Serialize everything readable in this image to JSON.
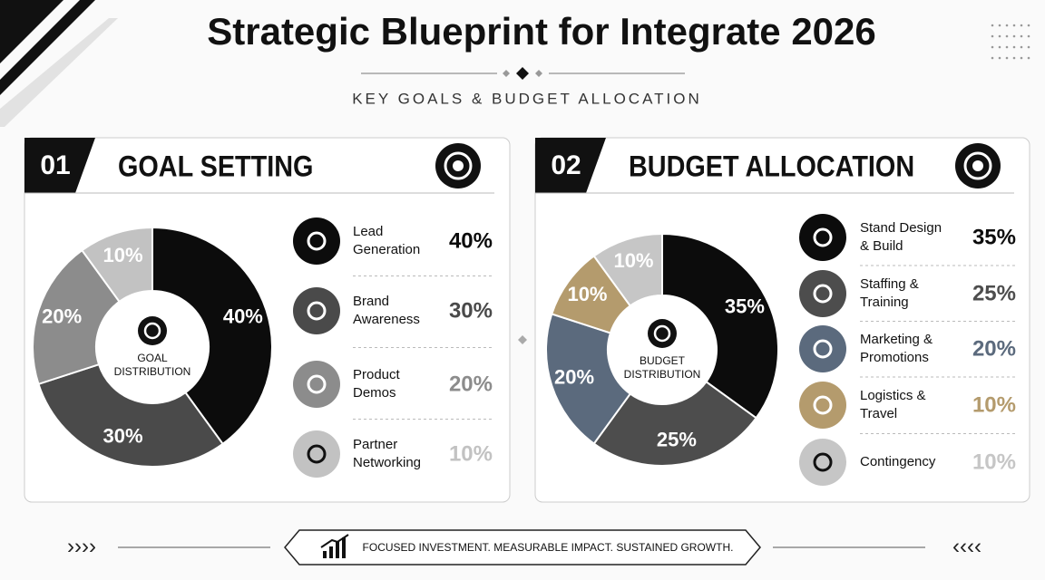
{
  "title": "Strategic Blueprint for Integrate 2026",
  "subtitle": "KEY GOALS & BUDGET ALLOCATION",
  "footer": "FOCUSED INVESTMENT. MEASURABLE IMPACT. SUSTAINED GROWTH.",
  "chart_data": [
    {
      "type": "donut",
      "number": "01",
      "title": "GOAL SETTING",
      "center_label": "GOAL DISTRIBUTION",
      "categories": [
        "Lead Generation",
        "Brand Awareness",
        "Product Demos",
        "Partner Networking"
      ],
      "values": [
        40,
        30,
        20,
        10
      ],
      "value_labels": [
        "40%",
        "30%",
        "20%",
        "10%"
      ],
      "colors": [
        "#0c0c0c",
        "#4a4a4a",
        "#8c8c8c",
        "#c2c2c2"
      ]
    },
    {
      "type": "donut",
      "number": "02",
      "title": "BUDGET ALLOCATION",
      "center_label": "BUDGET DISTRIBUTION",
      "categories": [
        "Stand Design & Build",
        "Staffing & Training",
        "Marketing & Promotions",
        "Logistics & Travel",
        "Contingency"
      ],
      "values": [
        35,
        25,
        20,
        10,
        10
      ],
      "value_labels": [
        "35%",
        "25%",
        "20%",
        "10%",
        "10%"
      ],
      "colors": [
        "#0c0c0c",
        "#4d4d4d",
        "#5b6a7d",
        "#b49b6d",
        "#c6c6c6"
      ]
    }
  ]
}
